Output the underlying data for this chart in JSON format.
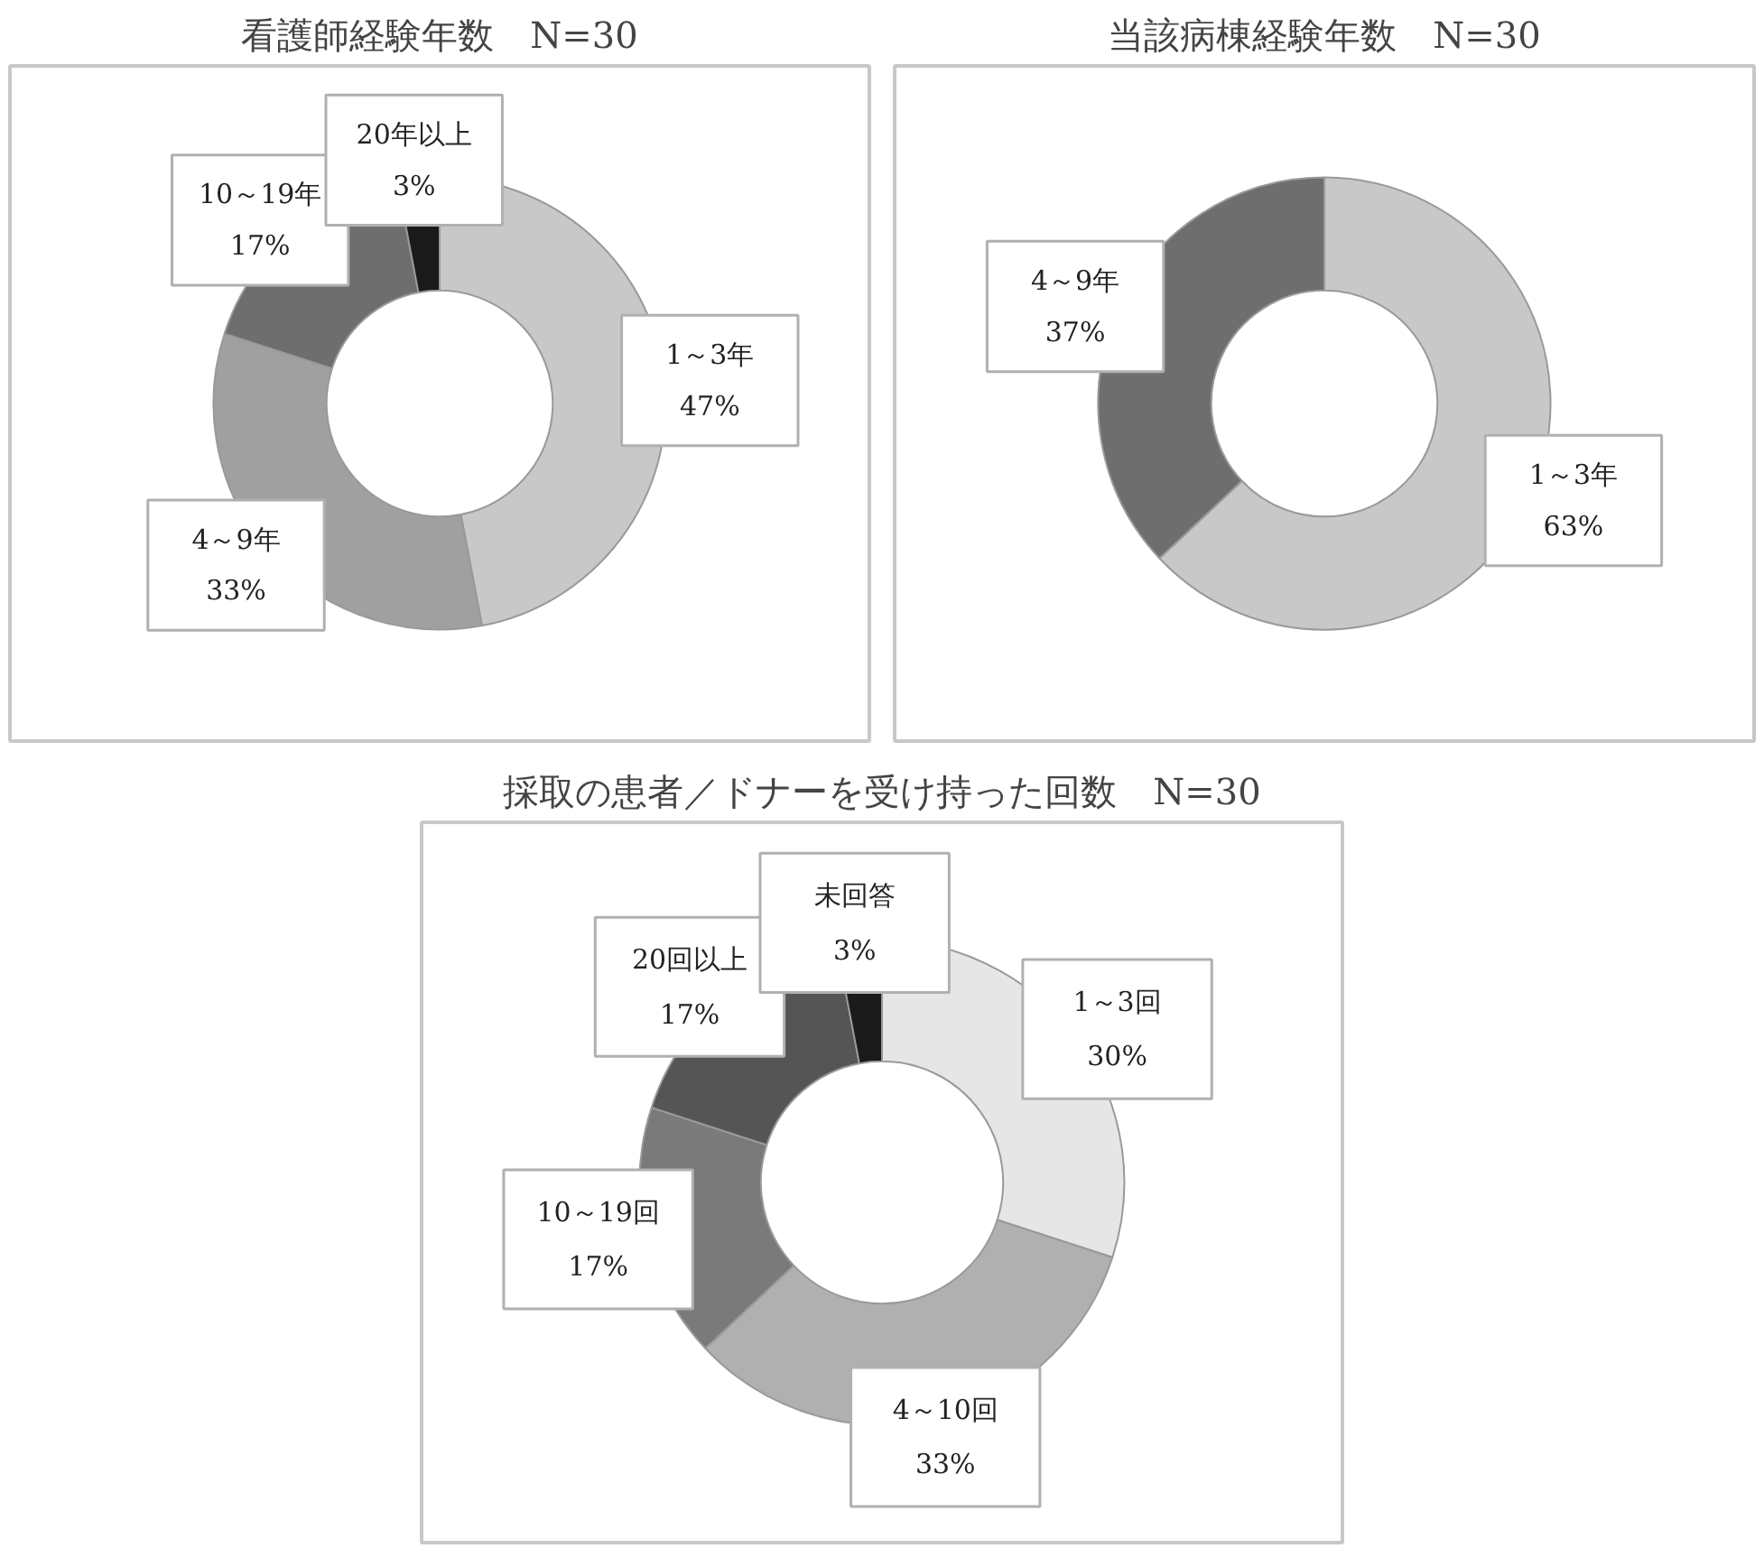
{
  "chart_data": [
    {
      "type": "donut",
      "title": "看護師経験年数　N=30",
      "categories": [
        "1～3年",
        "4～9年",
        "10～19年",
        "20年以上"
      ],
      "values": [
        47,
        33,
        17,
        3
      ],
      "colors": [
        "#c8c8c8",
        "#a0a0a0",
        "#6e6e6e",
        "#1a1a1a"
      ],
      "value_labels": [
        "47%",
        "33%",
        "17%",
        "3%"
      ]
    },
    {
      "type": "donut",
      "title": "当該病棟経験年数　N=30",
      "categories": [
        "1～3年",
        "4～9年"
      ],
      "values": [
        63,
        37
      ],
      "colors": [
        "#c8c8c8",
        "#6e6e6e"
      ],
      "value_labels": [
        "63%",
        "37%"
      ]
    },
    {
      "type": "donut",
      "title": "採取の患者／ドナーを受け持った回数　N=30",
      "categories": [
        "1～3回",
        "4～10回",
        "10～19回",
        "20回以上",
        "未回答"
      ],
      "values": [
        30,
        33,
        17,
        17,
        3
      ],
      "colors": [
        "#e6e6e6",
        "#b0b0b0",
        "#7a7a7a",
        "#555555",
        "#1a1a1a"
      ],
      "value_labels": [
        "30%",
        "33%",
        "17%",
        "17%",
        "3%"
      ]
    }
  ]
}
